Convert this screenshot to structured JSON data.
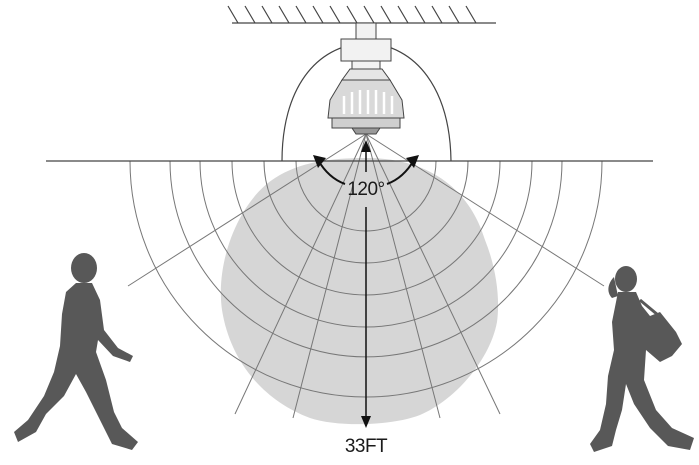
{
  "diagram": {
    "angle_label": "120°",
    "range_label": "33FT",
    "colors": {
      "line": "#555555",
      "arc": "#777777",
      "coverage": "#d6d6d6",
      "person": "#585858",
      "sensor_fill": "#f2f2f2"
    },
    "icons": {
      "sensor": "high-bay-motion-sensor-icon",
      "person_left": "walking-man-icon",
      "person_right": "walking-woman-with-bag-icon"
    }
  }
}
